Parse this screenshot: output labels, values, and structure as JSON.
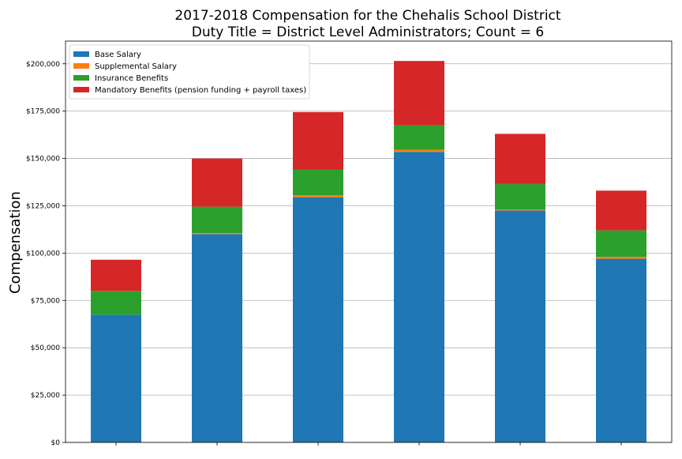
{
  "chart_data": {
    "type": "bar",
    "stacked": true,
    "title": "2017-2018 Compensation for the Chehalis School District",
    "subtitle": "Duty Title = District Level Administrators; Count = 6",
    "xlabel": "",
    "ylabel": "Compensation",
    "ylim": [
      0,
      212000
    ],
    "y_ticks": [
      0,
      25000,
      50000,
      75000,
      100000,
      125000,
      150000,
      175000,
      200000
    ],
    "y_tick_labels": [
      "$0",
      "$25,000",
      "$50,000",
      "$75,000",
      "$100,000",
      "$125,000",
      "$150,000",
      "$175,000",
      "$200,000"
    ],
    "grid": "horizontal",
    "legend_position": "top-left",
    "categories": [
      "",
      "",
      "",
      "",
      "",
      ""
    ],
    "series": [
      {
        "name": "Base Salary",
        "color": "#1f77b4",
        "values": [
          67500,
          110000,
          129500,
          153500,
          122500,
          97000
        ]
      },
      {
        "name": "Supplemental Salary",
        "color": "#ff7f0e",
        "values": [
          0,
          500,
          1000,
          1000,
          500,
          1000
        ]
      },
      {
        "name": "Insurance Benefits",
        "color": "#2ca02c",
        "values": [
          12500,
          14000,
          13500,
          13000,
          13500,
          14000
        ]
      },
      {
        "name": "Mandatory Benefits (pension funding + payroll taxes)",
        "color": "#d62728",
        "values": [
          16500,
          25500,
          30500,
          34000,
          26500,
          21000
        ]
      }
    ]
  }
}
